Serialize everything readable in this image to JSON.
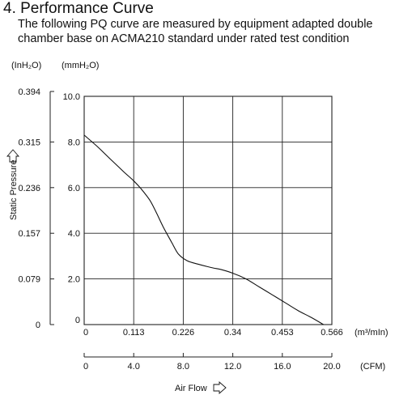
{
  "heading": "4. Performance Curve",
  "description_line1": "The following PQ curve are measured by equipment adapted double",
  "description_line2": "chamber base on ACMA210 standard under rated test condition",
  "chart_data": {
    "type": "line",
    "ylabel": "Static Pressure",
    "xlabel": "Air Flow",
    "y_left_unit": "(InH₂O)",
    "y_mm_unit": "(mmH₂O)",
    "x_m3_unit": "(m³/mIn)",
    "x_cfm_unit": "(CFM)",
    "y_inh2o_ticks": [
      "0",
      "0.079",
      "0.157",
      "0.236",
      "0.315",
      "0.394"
    ],
    "y_mmh2o_ticks": [
      "0",
      "2.0",
      "4.0",
      "6.0",
      "8.0",
      "10.0"
    ],
    "x_m3_ticks": [
      "0",
      "0.113",
      "0.226",
      "0.34",
      "0.453",
      "0.566"
    ],
    "x_cfm_ticks": [
      "0",
      "4.0",
      "8.0",
      "12.0",
      "16.0",
      "20.0"
    ],
    "xlim": [
      0,
      0.566
    ],
    "ylim": [
      0,
      10
    ],
    "grid": true,
    "series": [
      {
        "color": "#111111",
        "x": [
          0,
          0.03,
          0.06,
          0.09,
          0.113,
          0.13,
          0.15,
          0.165,
          0.18,
          0.2,
          0.215,
          0.235,
          0.26,
          0.29,
          0.315,
          0.34,
          0.37,
          0.4,
          0.43,
          0.46,
          0.49,
          0.52,
          0.547
        ],
        "y": [
          8.3,
          7.8,
          7.25,
          6.7,
          6.3,
          5.95,
          5.45,
          4.9,
          4.3,
          3.6,
          3.1,
          2.8,
          2.65,
          2.5,
          2.4,
          2.25,
          2.0,
          1.65,
          1.3,
          0.95,
          0.6,
          0.3,
          0.0
        ]
      }
    ]
  }
}
